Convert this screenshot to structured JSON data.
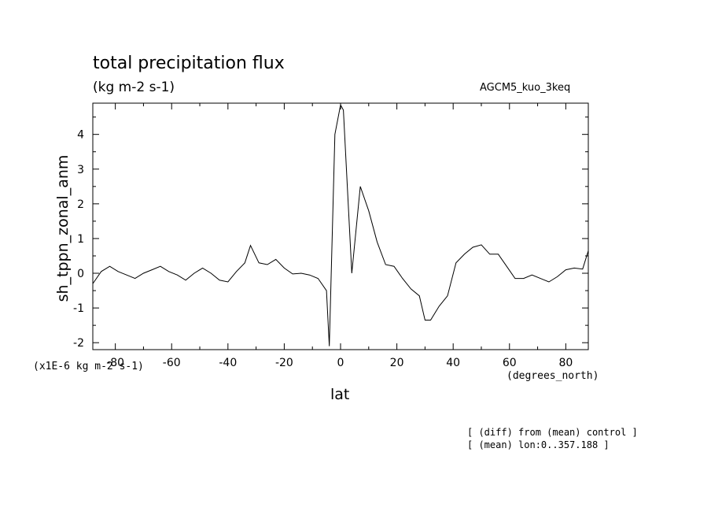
{
  "chart_data": {
    "type": "line",
    "title": "total precipitation flux",
    "subtitle": "(kg m-2 s-1)",
    "run_label": "AGCM5_kuo_3keq",
    "xlabel": "lat",
    "x_units": "(degrees_north)",
    "ylabel": "sh_tppn_zonal_anm",
    "y_scale_note": "(x1E-6 kg m-2 s-1)",
    "notes": [
      "[ (diff) from (mean) control ]",
      "[ (mean) lon:0..357.188 ]"
    ],
    "xlim": [
      -88,
      88
    ],
    "ylim": [
      -2.2,
      4.9
    ],
    "x_ticks": [
      -80,
      -60,
      -40,
      -20,
      0,
      20,
      40,
      60,
      80
    ],
    "x_tick_labels": [
      "-80",
      "-60",
      "-40",
      "-20",
      "0",
      "20",
      "40",
      "60",
      "80"
    ],
    "y_ticks": [
      -2,
      -1,
      0,
      1,
      2,
      3,
      4
    ],
    "y_tick_labels": [
      "-2",
      "-1",
      "0",
      "1",
      "2",
      "3",
      "4"
    ],
    "grid": false,
    "series": [
      {
        "x": [
          -88,
          -85,
          -82,
          -79,
          -76,
          -73,
          -70,
          -67,
          -64,
          -61,
          -58,
          -55,
          -52,
          -49,
          -46,
          -43,
          -40,
          -37,
          -34,
          -32,
          -29,
          -26,
          -23,
          -20,
          -17,
          -14,
          -11,
          -8,
          -5,
          -4,
          -2,
          0,
          1,
          4,
          7,
          10,
          13,
          16,
          19,
          22,
          25,
          28,
          30,
          32,
          35,
          38,
          41,
          44,
          47,
          50,
          53,
          56,
          59,
          62,
          65,
          68,
          71,
          74,
          77,
          80,
          83,
          86,
          88
        ],
        "y": [
          -0.3,
          0.05,
          0.2,
          0.05,
          -0.05,
          -0.15,
          0.0,
          0.1,
          0.2,
          0.05,
          -0.05,
          -0.2,
          0.0,
          0.15,
          0.0,
          -0.2,
          -0.25,
          0.05,
          0.3,
          0.8,
          0.3,
          0.25,
          0.4,
          0.15,
          -0.02,
          0.0,
          -0.05,
          -0.15,
          -0.5,
          -2.1,
          4.0,
          4.85,
          4.7,
          0.0,
          2.5,
          1.8,
          0.9,
          0.25,
          0.2,
          -0.15,
          -0.45,
          -0.65,
          -1.35,
          -1.35,
          -0.95,
          -0.65,
          0.3,
          0.55,
          0.75,
          0.82,
          0.55,
          0.55,
          0.2,
          -0.15,
          -0.15,
          -0.05,
          -0.15,
          -0.25,
          -0.1,
          0.1,
          0.15,
          0.12,
          0.65
        ]
      }
    ]
  }
}
